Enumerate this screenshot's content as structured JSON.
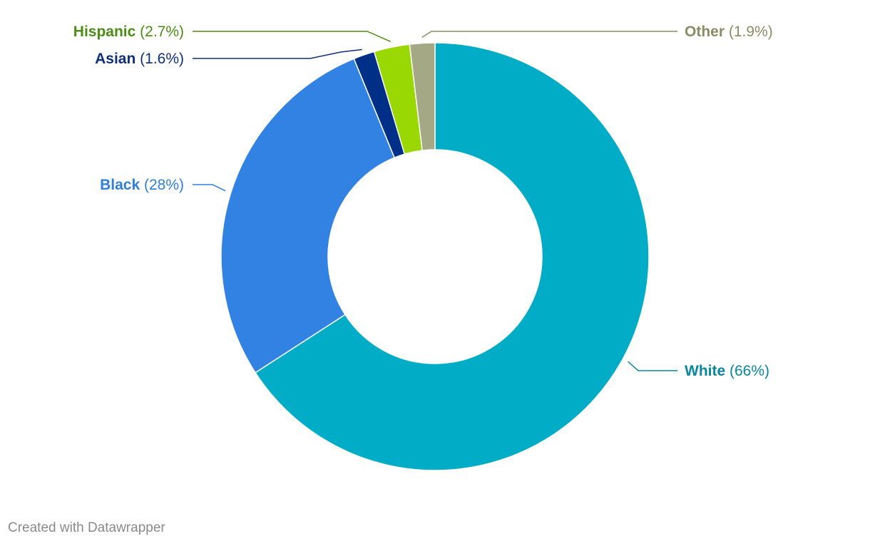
{
  "chart_data": {
    "type": "pie",
    "variant": "donut",
    "title": "",
    "slices": [
      {
        "label": "White",
        "value": 66,
        "display": "(66%)",
        "color": "#00acc6",
        "label_color": "#08889e"
      },
      {
        "label": "Black",
        "value": 28,
        "display": "(28%)",
        "color": "#3282e3",
        "label_color": "#2f7fdc"
      },
      {
        "label": "Asian",
        "value": 1.6,
        "display": "(1.6%)",
        "color": "#002f87",
        "label_color": "#0f2f7d"
      },
      {
        "label": "Hispanic",
        "value": 2.7,
        "display": "(2.7%)",
        "color": "#99d803",
        "label_color": "#4c8c14"
      },
      {
        "label": "Other",
        "value": 1.9,
        "display": "(1.9%)",
        "color": "#a5a885",
        "label_color": "#8a8d64"
      }
    ]
  },
  "footer": {
    "credit": "Created with Datawrapper"
  }
}
